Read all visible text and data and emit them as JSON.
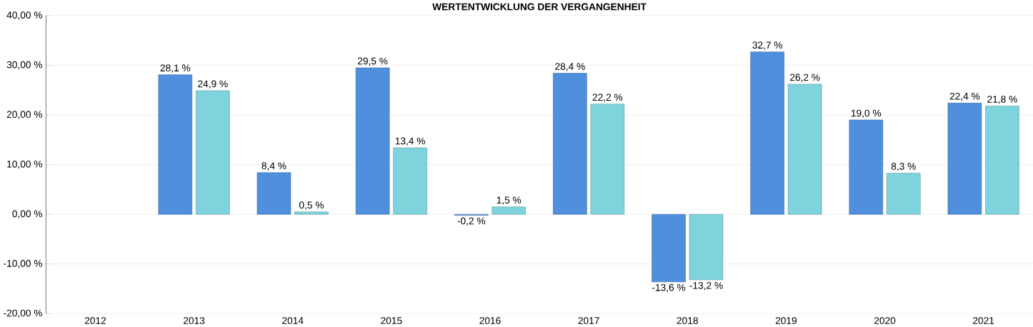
{
  "chart_data": {
    "type": "bar",
    "title": "WERTENTWICKLUNG DER VERGANGENHEIT",
    "categories": [
      "2012",
      "2013",
      "2014",
      "2015",
      "2016",
      "2017",
      "2018",
      "2019",
      "2020",
      "2021"
    ],
    "series": [
      {
        "color": "#4f8fde",
        "values": [
          null,
          28.1,
          8.4,
          29.5,
          -0.2,
          28.4,
          -13.6,
          32.7,
          19.0,
          22.4
        ],
        "value_labels": [
          null,
          "28,1 %",
          "8,4 %",
          "29,5 %",
          "-0,2 %",
          "28,4 %",
          "-13,6 %",
          "32,7 %",
          "19,0 %",
          "22,4 %"
        ]
      },
      {
        "color": "#7fd3dd",
        "values": [
          null,
          24.9,
          0.5,
          13.4,
          1.5,
          22.2,
          -13.2,
          26.2,
          8.3,
          21.8
        ],
        "value_labels": [
          null,
          "24,9 %",
          "0,5 %",
          "13,4 %",
          "1,5 %",
          "22,2 %",
          "-13,2 %",
          "26,2 %",
          "8,3 %",
          "21,8 %"
        ]
      }
    ],
    "ylim": [
      -20,
      40
    ],
    "yticks": [
      {
        "value": -20,
        "label": "-20,00 %"
      },
      {
        "value": -10,
        "label": "-10,00 %"
      },
      {
        "value": 0,
        "label": "0,00 %"
      },
      {
        "value": 10,
        "label": "10,00 %"
      },
      {
        "value": 20,
        "label": "20,00 %"
      },
      {
        "value": 30,
        "label": "30,00 %"
      },
      {
        "value": 40,
        "label": "40,00 %"
      }
    ],
    "grid": "y"
  }
}
